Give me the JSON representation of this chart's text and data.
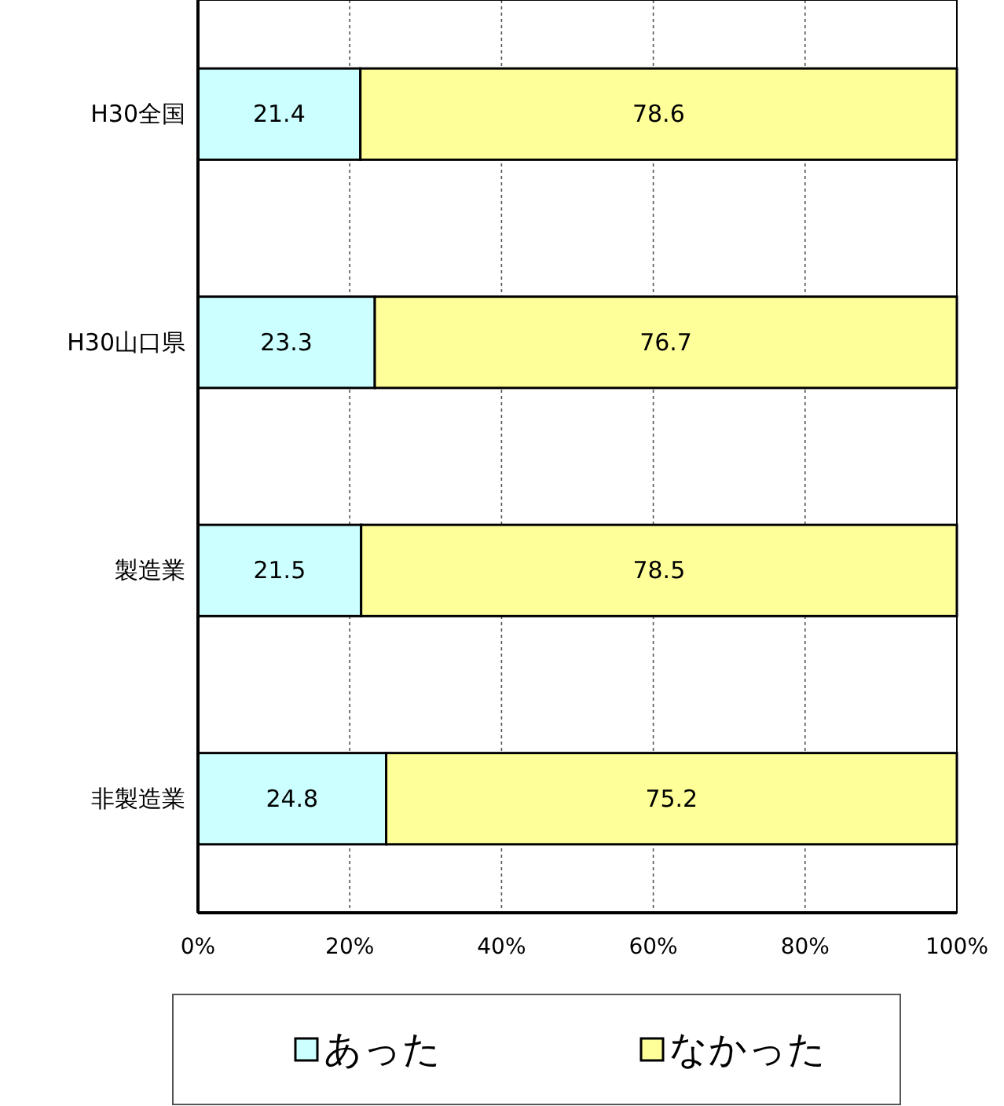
{
  "chart_data": {
    "type": "bar",
    "orientation": "horizontal",
    "stacked": true,
    "categories": [
      "H30全国",
      "H30山口県",
      "製造業",
      "非製造業"
    ],
    "series": [
      {
        "name": "あった",
        "color": "#ccffff",
        "values": [
          21.4,
          23.3,
          21.5,
          24.8
        ]
      },
      {
        "name": "なかった",
        "color": "#ffff99",
        "values": [
          78.6,
          76.7,
          78.5,
          75.2
        ]
      }
    ],
    "xlim": [
      0,
      100
    ],
    "xticks": [
      {
        "value": 0,
        "label": "0%"
      },
      {
        "value": 20,
        "label": "20%"
      },
      {
        "value": 40,
        "label": "40%"
      },
      {
        "value": 60,
        "label": "60%"
      },
      {
        "value": 80,
        "label": "80%"
      },
      {
        "value": 100,
        "label": "100%"
      }
    ],
    "grid": "x",
    "data_labels": true,
    "legend": "bottom"
  }
}
